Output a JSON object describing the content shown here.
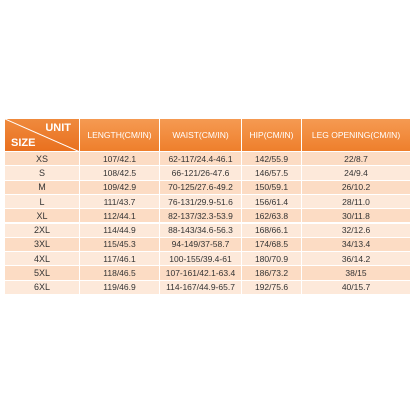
{
  "table": {
    "corner": {
      "top": "UNIT",
      "bottom": "SIZE"
    },
    "columns": [
      "LENGTH(CM/IN)",
      "WAIST(CM/IN)",
      "HIP(CM/IN)",
      "LEG OPENING(CM/IN)"
    ],
    "rows": [
      [
        "XS",
        "107/42.1",
        "62-117/24.4-46.1",
        "142/55.9",
        "22/8.7"
      ],
      [
        "S",
        "108/42.5",
        "66-121/26-47.6",
        "146/57.5",
        "24/9.4"
      ],
      [
        "M",
        "109/42.9",
        "70-125/27.6-49.2",
        "150/59.1",
        "26/10.2"
      ],
      [
        "L",
        "111/43.7",
        "76-131/29.9-51.6",
        "156/61.4",
        "28/11.0"
      ],
      [
        "XL",
        "112/44.1",
        "82-137/32.3-53.9",
        "162/63.8",
        "30/11.8"
      ],
      [
        "2XL",
        "114/44.9",
        "88-143/34.6-56.3",
        "168/66.1",
        "32/12.6"
      ],
      [
        "3XL",
        "115/45.3",
        "94-149/37-58.7",
        "174/68.5",
        "34/13.4"
      ],
      [
        "4XL",
        "117/46.1",
        "100-155/39.4-61",
        "180/70.9",
        "36/14.2"
      ],
      [
        "5XL",
        "118/46.5",
        "107-161/42.1-63.4",
        "186/73.2",
        "38/15"
      ],
      [
        "6XL",
        "119/46.9",
        "114-167/44.9-65.7",
        "192/75.6",
        "40/15.7"
      ]
    ]
  }
}
